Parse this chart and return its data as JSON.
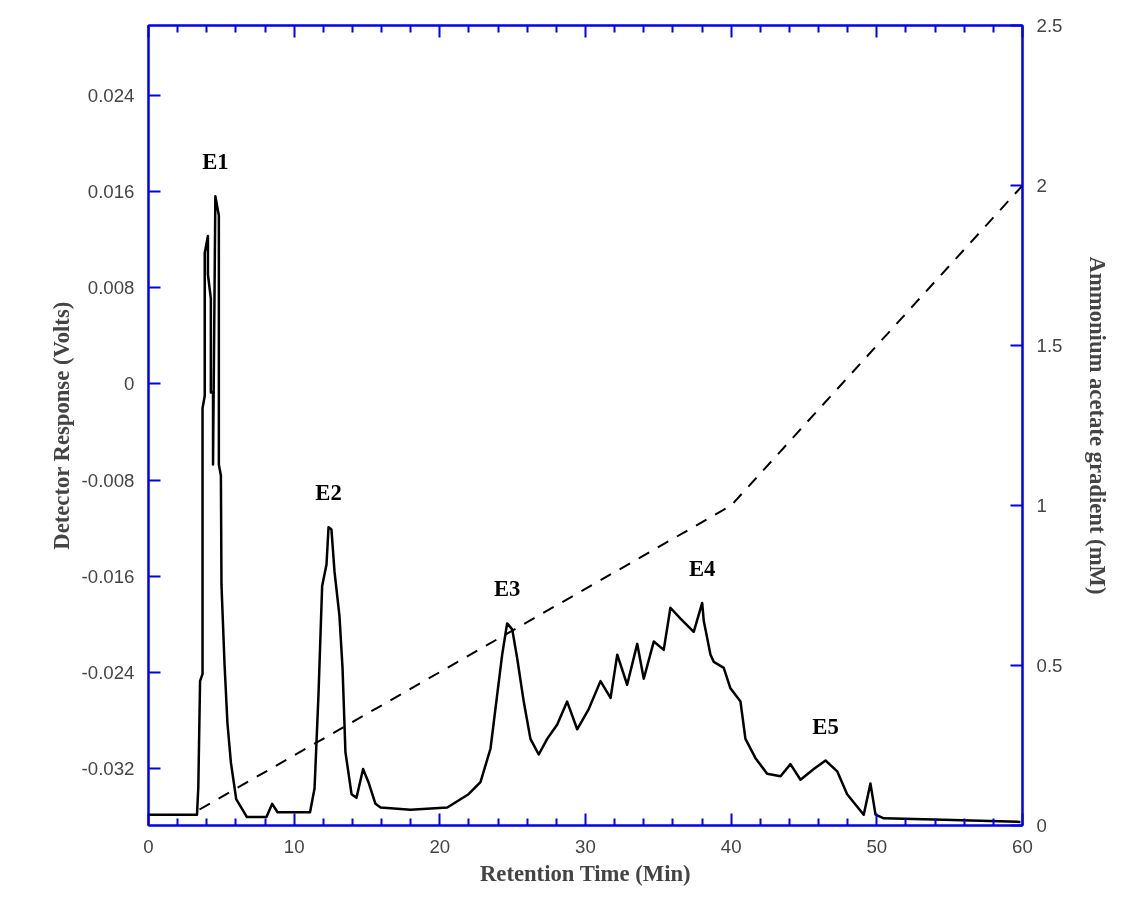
{
  "chart_data": {
    "type": "line",
    "xlabel": "Retention Time (Min)",
    "ylabel": "Detector Response (Volts)",
    "y2label": "Ammonium acetate gradient (mM)",
    "xlim": [
      0,
      60
    ],
    "ylim": [
      -0.0367,
      0.0298
    ],
    "y2lim": [
      0,
      2.5
    ],
    "xticks": [
      0,
      {
        "value": 2,
        "label": null
      },
      {
        "value": 4,
        "label": null
      },
      {
        "value": 6,
        "label": null
      },
      {
        "value": 8,
        "label": null
      },
      10,
      {
        "value": 12,
        "label": null
      },
      {
        "value": 14,
        "label": null
      },
      {
        "value": 16,
        "label": null
      },
      {
        "value": 18,
        "label": null
      },
      20,
      {
        "value": 22,
        "label": null
      },
      {
        "value": 24,
        "label": null
      },
      {
        "value": 26,
        "label": null
      },
      {
        "value": 28,
        "label": null
      },
      30,
      {
        "value": 32,
        "label": null
      },
      {
        "value": 34,
        "label": null
      },
      {
        "value": 36,
        "label": null
      },
      {
        "value": 38,
        "label": null
      },
      40,
      {
        "value": 42,
        "label": null
      },
      {
        "value": 44,
        "label": null
      },
      {
        "value": 46,
        "label": null
      },
      {
        "value": 48,
        "label": null
      },
      50,
      {
        "value": 52,
        "label": null
      },
      {
        "value": 54,
        "label": null
      },
      {
        "value": 56,
        "label": null
      },
      {
        "value": 58,
        "label": null
      },
      60
    ],
    "yticks": [
      -0.032,
      -0.024,
      -0.016,
      -0.008,
      0,
      0.008,
      0.016,
      0.024
    ],
    "y2ticks": [
      0,
      0.5,
      1,
      1.5,
      2,
      2.5
    ],
    "grid": false,
    "series": [
      {
        "color": "#000000",
        "line_style": "solid",
        "x": [
          0,
          3.33,
          3.42,
          3.54,
          3.71,
          3.71,
          3.86,
          3.86,
          4.08,
          4.08,
          4.28,
          4.28,
          4.43,
          4.43,
          4.59,
          4.83,
          4.83,
          4.97,
          5.01,
          5.22,
          5.42,
          5.66,
          6.02,
          6.76,
          8.1,
          8.49,
          8.86,
          11.09,
          11.4,
          11.67,
          11.92,
          12.22,
          12.36,
          12.56,
          12.77,
          13.11,
          13.32,
          13.52,
          13.94,
          14.28,
          14.73,
          15.1,
          15.58,
          15.93,
          17.99,
          20.51,
          21.97,
          22.79,
          23.48,
          23.94,
          24.28,
          24.62,
          24.97,
          25.31,
          25.76,
          26.22,
          26.79,
          27.37,
          28.06,
          28.74,
          29.43,
          30.23,
          31.03,
          31.72,
          32.18,
          32.86,
          33.55,
          34.0,
          34.69,
          35.37,
          35.83,
          36.52,
          37.43,
          38.01,
          38.12,
          38.35,
          38.58,
          38.81,
          39.49,
          39.95,
          40.64,
          40.98,
          41.67,
          42.47,
          43.39,
          44.07,
          44.76,
          45.67,
          46.48,
          47.28,
          47.96,
          49.1,
          49.56,
          49.91,
          50.48,
          53.91,
          59.86
        ],
        "values": [
          -0.0358,
          -0.0358,
          -0.0335,
          -0.0247,
          -0.0241,
          -0.002,
          -0.001,
          0.0109,
          0.0123,
          0.0091,
          0.0071,
          -0.0007,
          -0.0007,
          -0.0067,
          0.0156,
          0.014,
          -0.0067,
          -0.0076,
          -0.0167,
          -0.0233,
          -0.0282,
          -0.0315,
          -0.0345,
          -0.036,
          -0.036,
          -0.0349,
          -0.0356,
          -0.0356,
          -0.0336,
          -0.0258,
          -0.0168,
          -0.015,
          -0.0119,
          -0.0121,
          -0.0156,
          -0.0193,
          -0.0236,
          -0.0306,
          -0.0341,
          -0.0344,
          -0.032,
          -0.0331,
          -0.0349,
          -0.0352,
          -0.0354,
          -0.0352,
          -0.0341,
          -0.0331,
          -0.0303,
          -0.0258,
          -0.0225,
          -0.0199,
          -0.0204,
          -0.0228,
          -0.0264,
          -0.0295,
          -0.0308,
          -0.0295,
          -0.0283,
          -0.0264,
          -0.0287,
          -0.027,
          -0.0247,
          -0.0261,
          -0.0225,
          -0.025,
          -0.0216,
          -0.0245,
          -0.0214,
          -0.0221,
          -0.0186,
          -0.0195,
          -0.0206,
          -0.0182,
          -0.0197,
          -0.0211,
          -0.0225,
          -0.0231,
          -0.0236,
          -0.0253,
          -0.0264,
          -0.0295,
          -0.0311,
          -0.0324,
          -0.0326,
          -0.0316,
          -0.0329,
          -0.032,
          -0.0313,
          -0.0322,
          -0.0341,
          -0.0358,
          -0.0332,
          -0.0358,
          -0.0361,
          -0.0362,
          -0.0364
        ]
      },
      {
        "color": "#000000",
        "line_style": "dashed",
        "axis": "y2",
        "x": [
          3.5,
          40,
          60
        ],
        "values": [
          0.05,
          1,
          2
        ]
      }
    ],
    "annotations": [
      {
        "text": "E1",
        "x": 4.59,
        "y": 0.0156
      },
      {
        "text": "E2",
        "x": 12.36,
        "y": -0.0119
      },
      {
        "text": "E3",
        "x": 24.62,
        "y": -0.0199
      },
      {
        "text": "E4",
        "x": 38.01,
        "y": -0.0182
      },
      {
        "text": "E5",
        "x": 46.48,
        "y": -0.0313
      }
    ]
  }
}
